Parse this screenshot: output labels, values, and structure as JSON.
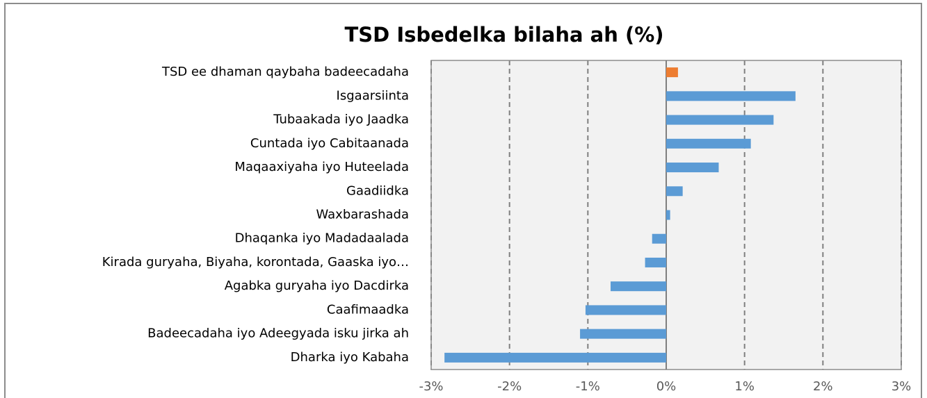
{
  "chart_data": {
    "type": "hbar",
    "title": "TSD Isbedelka bilaha ah (%)",
    "categories": [
      "TSD ee dhaman qaybaha badeecadaha",
      "Isgaarsiinta",
      "Tubaakada iyo Jaadka",
      "Cuntada iyo Cabitaanada",
      "Maqaaxiyaha iyo Huteelada",
      "Gaadiidka",
      "Waxbarashada",
      "Dhaqanka iyo Madadaalada",
      "Kirada guryaha, Biyaha, korontada, Gaaska iyo…",
      "Agabka guryaha iyo Dacdirka",
      "Caafimaadka",
      "Badeecadaha iyo Adeegyada isku jirka ah",
      "Dharka iyo Kabaha"
    ],
    "values": [
      0.15,
      1.65,
      1.37,
      1.08,
      0.67,
      0.21,
      0.05,
      -0.18,
      -0.27,
      -0.71,
      -1.03,
      -1.1,
      -2.83
    ],
    "colors": [
      "#ed7d31",
      "#5b9bd5",
      "#5b9bd5",
      "#5b9bd5",
      "#5b9bd5",
      "#5b9bd5",
      "#5b9bd5",
      "#5b9bd5",
      "#5b9bd5",
      "#5b9bd5",
      "#5b9bd5",
      "#5b9bd5",
      "#5b9bd5"
    ],
    "xlim": [
      -3,
      3
    ],
    "xticks": [
      {
        "value": -3,
        "label": "-3%"
      },
      {
        "value": -2,
        "label": "-2%"
      },
      {
        "value": -1,
        "label": "-1%"
      },
      {
        "value": 0,
        "label": "0%"
      },
      {
        "value": 1,
        "label": "1%"
      },
      {
        "value": 2,
        "label": "2%"
      },
      {
        "value": 3,
        "label": "3%"
      }
    ],
    "grid": true
  }
}
